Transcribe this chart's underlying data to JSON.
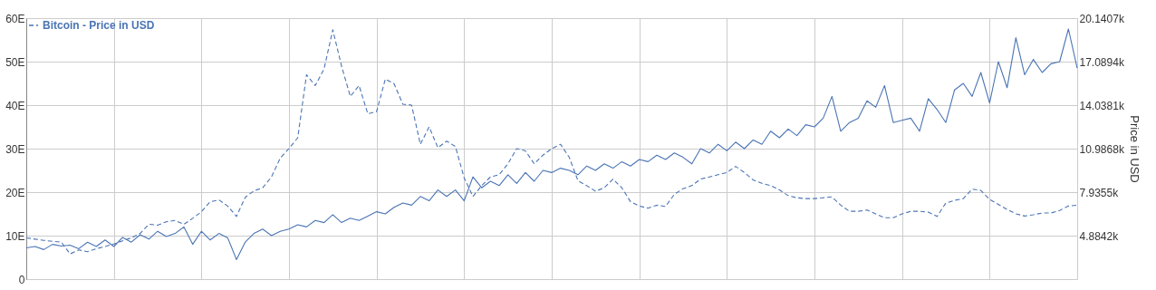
{
  "chart_data": {
    "type": "line",
    "categories": [
      null,
      null,
      null,
      null,
      null,
      null,
      null,
      null,
      null,
      null,
      null,
      null,
      null,
      null,
      null,
      null,
      null,
      null,
      null,
      null,
      null,
      null,
      null,
      null,
      null,
      null,
      null,
      null,
      null,
      null,
      null,
      null,
      null,
      null,
      null,
      null,
      null,
      null,
      null,
      null,
      null,
      null,
      null,
      null,
      null,
      null,
      null,
      null,
      null,
      null,
      null,
      null,
      null,
      null,
      null,
      null,
      null,
      null,
      null,
      null,
      null,
      null,
      null,
      null,
      null,
      null,
      null,
      null,
      null,
      null,
      null,
      null,
      null,
      null,
      null,
      null,
      null,
      null,
      null,
      null,
      null,
      null,
      null,
      null,
      null,
      null,
      null,
      null,
      null,
      null,
      null,
      null,
      null,
      null,
      null,
      null,
      null,
      null,
      null,
      null,
      null,
      null,
      null,
      null,
      null,
      null,
      null,
      null,
      null,
      null,
      null,
      null,
      null,
      null,
      null,
      null,
      null,
      null,
      null,
      null,
      null
    ],
    "series": [
      {
        "color": "#4a74b4",
        "line_style": "solid",
        "values": [
          7.2,
          7.5,
          6.8,
          8,
          7.6,
          7.8,
          7,
          8.5,
          7.5,
          9,
          7.5,
          9.6,
          8.5,
          10.2,
          9.2,
          11,
          9.8,
          10.5,
          12,
          8,
          11,
          9,
          10.5,
          9.5,
          4.5,
          8.5,
          10.5,
          11.5,
          10,
          11,
          11.5,
          12.5,
          12,
          13.5,
          13,
          14.8,
          13,
          14,
          13.5,
          14.5,
          15.5,
          15,
          16.5,
          17.5,
          17,
          19,
          18,
          20.5,
          19,
          20.5,
          18,
          23.5,
          21,
          22.5,
          21.5,
          24,
          22,
          24.5,
          22.5,
          25,
          24.5,
          25.5,
          25,
          24,
          26,
          25,
          26.5,
          25.5,
          27,
          26,
          27.5,
          27,
          28.5,
          27.5,
          29,
          28,
          26.5,
          30,
          29,
          31,
          29.5,
          31.5,
          30,
          32,
          31,
          34,
          32.5,
          34.5,
          33,
          35.5,
          35,
          37,
          42,
          34,
          36,
          37,
          41,
          39.5,
          44.5,
          36,
          36.5,
          37,
          34,
          41.5,
          39,
          36,
          43.5,
          45,
          42,
          47.5,
          40.5,
          50,
          44,
          55.5,
          47,
          50.5,
          47.5,
          49.5,
          50,
          57.5,
          48.5
        ]
      },
      {
        "name": "Bitcoin - Price in USD",
        "color": "#4a74b4",
        "line_style": "dashed",
        "axis": "y2",
        "values": [
          4730,
          4640,
          4550,
          4490,
          4430,
          3600,
          3880,
          3760,
          3970,
          4120,
          4300,
          4520,
          4730,
          5040,
          5680,
          5620,
          5860,
          5950,
          5680,
          6100,
          6560,
          7260,
          7390,
          6960,
          6230,
          7570,
          8030,
          8240,
          9000,
          10320,
          10990,
          11750,
          16170,
          15410,
          16570,
          19320,
          16780,
          14650,
          15410,
          13430,
          13580,
          15870,
          15530,
          14100,
          14040,
          11290,
          12510,
          11050,
          11510,
          11140,
          8940,
          7630,
          8390,
          9000,
          9160,
          9920,
          10990,
          10830,
          9920,
          10530,
          10990,
          11290,
          10380,
          8730,
          8390,
          8000,
          8240,
          8850,
          8240,
          7260,
          6960,
          6810,
          7020,
          6930,
          7780,
          8180,
          8390,
          8850,
          9000,
          9160,
          9310,
          9740,
          9310,
          8790,
          8550,
          8390,
          8090,
          7690,
          7540,
          7480,
          7480,
          7540,
          7600,
          7020,
          6590,
          6590,
          6680,
          6410,
          6140,
          6140,
          6410,
          6590,
          6590,
          6530,
          6230,
          7170,
          7360,
          7480,
          8150,
          8060,
          7420,
          7080,
          6720,
          6410,
          6260,
          6350,
          6470,
          6470,
          6650,
          6960,
          7020
        ]
      }
    ],
    "ylim": [
      0,
      60
    ],
    "yticks": [
      0,
      {
        "value": 10,
        "label": "10E"
      },
      {
        "value": 20,
        "label": "20E"
      },
      {
        "value": 30,
        "label": "30E"
      },
      {
        "value": 40,
        "label": "40E"
      },
      {
        "value": 50,
        "label": "50E"
      },
      {
        "value": 60,
        "label": "60E"
      }
    ],
    "y2label": "Price in USD",
    "y2lim": [
      1832.9,
      20140.7
    ],
    "y2ticks": [
      {
        "value": 1832.9,
        "label": null
      },
      {
        "value": 4884.2,
        "label": "4.8842k"
      },
      {
        "value": 7935.5,
        "label": "7.9355k"
      },
      {
        "value": 10986.8,
        "label": "10.9868k"
      },
      {
        "value": 14038.1,
        "label": "14.0381k"
      },
      {
        "value": 17089.4,
        "label": "17.0894k"
      },
      {
        "value": 20140.7,
        "label": "20.1407k"
      }
    ],
    "grid": true,
    "legend": "top left"
  }
}
